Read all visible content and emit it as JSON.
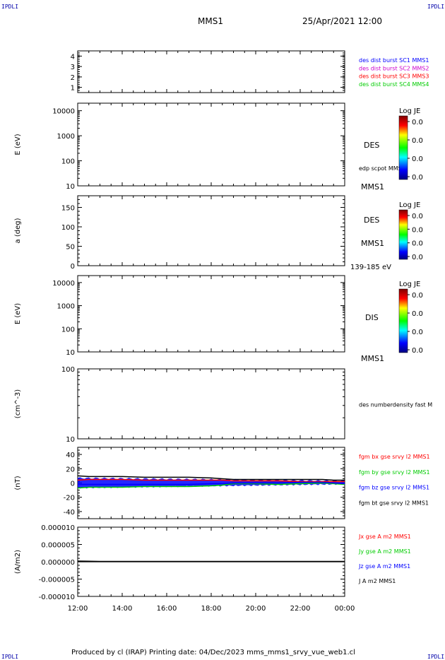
{
  "corners": {
    "top_left": "IPDLI",
    "top_right": "IPDLI",
    "bottom_left": "IPDLI",
    "bottom_right": "IPDLI"
  },
  "header": {
    "mission": "MMS1",
    "datetime": "25/Apr/2021 12:00"
  },
  "footer": {
    "text": "Produced by cl (IRAP)   Printing date: 04/Dec/2023   mms_mms1_srvy_vue_web1.cl"
  },
  "colors": {
    "blue": "#0000ff",
    "magenta": "#cc00cc",
    "red": "#ff0000",
    "green": "#00cc00",
    "black": "#000000"
  },
  "time_axis": {
    "ticks": [
      "12:00",
      "14:00",
      "16:00",
      "18:00",
      "20:00",
      "22:00",
      "00:00"
    ]
  },
  "chart_data": [
    {
      "type": "line",
      "ylim": [
        0.5,
        4.5
      ],
      "yticks": [
        "1",
        "2",
        "3",
        "4"
      ],
      "ylabel": "",
      "legend": [
        {
          "label": "des dist burst SC1 MMS1",
          "color": "#0000ff"
        },
        {
          "label": "des dist burst SC2 MMS2",
          "color": "#cc00cc"
        },
        {
          "label": "des dist burst SC3 MMS3",
          "color": "#ff0000"
        },
        {
          "label": "des dist burst SC4 MMS4",
          "color": "#00cc00"
        }
      ],
      "series": []
    },
    {
      "type": "heatmap",
      "ylabel": "E (eV)",
      "ylim": [
        10,
        20000
      ],
      "scale": "log",
      "yticks": [
        "10",
        "100",
        "1000",
        "10000"
      ],
      "right_labels": [
        "DES",
        "edp scpot MMS1",
        "MMS1"
      ],
      "colorbar": {
        "title": "Log JE",
        "ticks": [
          "0.0",
          "0.0",
          "0.0",
          "0.0"
        ]
      }
    },
    {
      "type": "heatmap",
      "ylabel": "a (deg)",
      "ylim": [
        0,
        180
      ],
      "yticks": [
        "0",
        "50",
        "100",
        "150"
      ],
      "right_labels": [
        "DES",
        "MMS1",
        "139-185 eV"
      ],
      "colorbar": {
        "title": "Log JE",
        "ticks": [
          "0.0",
          "0.0",
          "0.0",
          "0.0"
        ]
      }
    },
    {
      "type": "heatmap",
      "ylabel": "E (eV)",
      "ylim": [
        10,
        20000
      ],
      "scale": "log",
      "yticks": [
        "10",
        "100",
        "1000",
        "10000"
      ],
      "right_labels": [
        "DIS",
        "MMS1"
      ],
      "colorbar": {
        "title": "Log JE",
        "ticks": [
          "0.0",
          "0.0",
          "0.0",
          "0.0"
        ]
      }
    },
    {
      "type": "line",
      "ylabel": "(cm^-3)",
      "ylim": [
        10,
        100
      ],
      "scale": "log",
      "yticks": [
        "10",
        "100"
      ],
      "legend": [
        {
          "label": "des numberdensity fast M",
          "color": "#000000"
        }
      ],
      "series": []
    },
    {
      "type": "line",
      "ylabel": "(nT)",
      "ylim": [
        -50,
        50
      ],
      "yticks": [
        "-40",
        "-20",
        "0",
        "20",
        "40"
      ],
      "legend": [
        {
          "label": "fgm bx gse srvy l2 MMS1",
          "color": "#ff0000"
        },
        {
          "label": "fgm by gse srvy l2 MMS1",
          "color": "#00cc00"
        },
        {
          "label": "fgm bz gse srvy l2 MMS1",
          "color": "#0000ff"
        },
        {
          "label": "fgm bt gse srvy l2 MMS1",
          "color": "#000000"
        }
      ],
      "x": [
        0,
        0.5,
        1,
        2,
        3,
        4,
        5,
        6,
        6.5,
        7,
        8,
        9,
        10,
        11,
        11.5,
        12
      ],
      "series": [
        {
          "name": "fgm bx gse srvy l2 MMS1",
          "color": "#ff0000",
          "values": [
            4,
            5,
            5,
            5,
            4,
            4,
            4,
            4,
            4,
            3,
            3,
            3,
            2,
            2,
            2,
            2
          ]
        },
        {
          "name": "fgm by gse srvy l2 MMS1",
          "color": "#00cc00",
          "values": [
            -7,
            -6,
            -6,
            -6,
            -5,
            -5,
            -5,
            -4,
            -3,
            -1,
            -1,
            -2,
            -1,
            0,
            -1,
            -2
          ]
        },
        {
          "name": "fgm bz gse srvy l2 MMS1",
          "color": "#0000ff",
          "values": [
            -2,
            -2,
            -2,
            -2,
            -2,
            -2,
            -2,
            -1,
            -1,
            0,
            0,
            0,
            1,
            1,
            0,
            -1
          ]
        },
        {
          "name": "fgm bt gse srvy l2 MMS1",
          "color": "#000000",
          "values": [
            10,
            9,
            9,
            9,
            8,
            8,
            8,
            7,
            6,
            5,
            5,
            5,
            5,
            5,
            4,
            4
          ]
        }
      ]
    },
    {
      "type": "line",
      "ylabel": "(A/m2)",
      "ylim": [
        -1e-05,
        1e-05
      ],
      "yticks": [
        "-0.000010",
        "-0.000005",
        "0.000000",
        "0.000005",
        "0.000010"
      ],
      "legend": [
        {
          "label": "Jx gse A m2 MMS1",
          "color": "#ff0000"
        },
        {
          "label": "Jy gse A m2 MMS1",
          "color": "#00cc00"
        },
        {
          "label": "Jz gse A m2 MMS1",
          "color": "#0000ff"
        },
        {
          "label": "J A m2 MMS1",
          "color": "#000000"
        }
      ],
      "x": [
        0,
        1,
        2,
        3,
        4,
        5,
        6,
        7,
        8,
        9,
        10,
        11,
        12
      ],
      "series": [
        {
          "name": "J A m2 MMS1",
          "color": "#000000",
          "values": [
            2e-07,
            1e-07,
            1e-07,
            1e-07,
            1e-07,
            1e-07,
            1e-07,
            1e-07,
            1e-07,
            1e-07,
            1e-07,
            1e-07,
            1e-07
          ]
        }
      ]
    }
  ]
}
